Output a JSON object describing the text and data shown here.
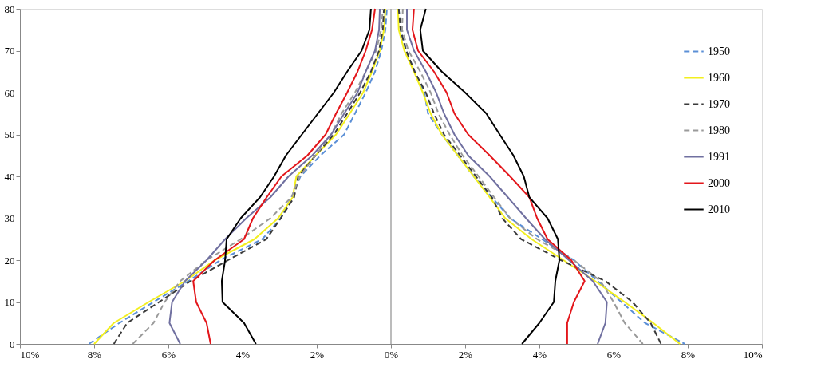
{
  "chart_data": {
    "type": "line",
    "xlim": [
      -10,
      10
    ],
    "xticks": [
      {
        "value": -10,
        "label": "10%"
      },
      {
        "value": -8,
        "label": "8%"
      },
      {
        "value": -6,
        "label": "6%"
      },
      {
        "value": -4,
        "label": "4%"
      },
      {
        "value": -2,
        "label": "2%"
      },
      {
        "value": 0,
        "label": "0%"
      },
      {
        "value": 2,
        "label": "2%"
      },
      {
        "value": 4,
        "label": "4%"
      },
      {
        "value": 6,
        "label": "6%"
      },
      {
        "value": 8,
        "label": "8%"
      },
      {
        "value": 10,
        "label": "10%"
      }
    ],
    "ylim": [
      0,
      80
    ],
    "yticks": [
      0,
      10,
      20,
      30,
      40,
      50,
      60,
      70,
      80
    ],
    "grid": false,
    "legend": "top right",
    "ref_lines": [
      {
        "axis": "x",
        "value": 0,
        "color": "#a6a6a6"
      }
    ],
    "series": [
      {
        "name": "1950",
        "color": "#5b8fd6",
        "line_style": "dashed",
        "x": [
          -8.14,
          -7.32,
          -6.4,
          -5.46,
          -4.6,
          -3.47,
          -2.97,
          -2.68,
          -2.44,
          -1.9,
          -1.26,
          -0.97,
          -0.68,
          -0.43,
          -0.26,
          -0.15,
          -0.11,
          null,
          0.21,
          0.26,
          0.41,
          0.64,
          0.9,
          1.0,
          1.37,
          1.8,
          2.23,
          2.72,
          3.21,
          4.07,
          4.93,
          5.57,
          6.21,
          6.85,
          7.92
        ],
        "values": [
          0,
          5,
          10,
          15,
          20,
          25,
          30,
          35,
          40,
          45,
          50,
          55,
          60,
          65,
          70,
          75,
          80,
          null,
          80,
          75,
          70,
          65,
          60,
          55,
          50,
          45,
          40,
          35,
          30,
          25,
          20,
          15,
          10,
          5,
          0
        ]
      },
      {
        "name": "1960",
        "color": "#f2ef1f",
        "line_style": "solid",
        "x": [
          -8.0,
          -7.47,
          -6.53,
          -5.55,
          -4.75,
          -3.68,
          -3.04,
          -2.65,
          -2.55,
          -2.03,
          -1.48,
          -1.11,
          -0.75,
          -0.51,
          -0.3,
          -0.19,
          -0.15,
          null,
          0.19,
          0.21,
          0.36,
          0.62,
          0.86,
          1.07,
          1.37,
          1.8,
          2.23,
          2.66,
          3.08,
          3.79,
          4.65,
          5.5,
          6.3,
          7.07,
          7.79
        ],
        "values": [
          0,
          5,
          10,
          15,
          20,
          25,
          30,
          35,
          40,
          45,
          50,
          55,
          60,
          65,
          70,
          75,
          80,
          null,
          80,
          75,
          70,
          65,
          60,
          55,
          50,
          45,
          40,
          35,
          30,
          25,
          20,
          15,
          10,
          5,
          0
        ]
      },
      {
        "name": "1970",
        "color": "#3a3a3a",
        "line_style": "dashed",
        "x": [
          -7.47,
          -7.11,
          -6.25,
          -5.4,
          -4.39,
          -3.36,
          -2.97,
          -2.61,
          -2.5,
          -2.03,
          -1.54,
          -1.18,
          -0.83,
          -0.54,
          -0.32,
          -0.22,
          -0.19,
          null,
          0.21,
          0.26,
          0.41,
          0.64,
          0.94,
          1.16,
          1.43,
          1.86,
          2.29,
          2.72,
          3.0,
          3.51,
          4.58,
          5.78,
          6.51,
          7.0,
          7.28
        ],
        "values": [
          0,
          5,
          10,
          15,
          20,
          25,
          30,
          35,
          40,
          45,
          50,
          55,
          60,
          65,
          70,
          75,
          80,
          null,
          80,
          75,
          70,
          65,
          60,
          55,
          50,
          45,
          40,
          35,
          30,
          25,
          20,
          15,
          10,
          5,
          0
        ]
      },
      {
        "name": "1980",
        "color": "#9a9a9a",
        "line_style": "dashed",
        "x": [
          -6.96,
          -6.4,
          -6.1,
          -5.68,
          -4.97,
          -4.05,
          -3.25,
          -2.68,
          -2.46,
          -2.03,
          -1.61,
          -1.33,
          -0.97,
          -0.68,
          -0.4,
          -0.26,
          -0.22,
          null,
          0.32,
          0.3,
          0.47,
          0.79,
          1.07,
          1.28,
          1.58,
          1.93,
          2.36,
          2.78,
          3.21,
          3.94,
          4.93,
          5.65,
          6.0,
          6.3,
          6.79
        ],
        "values": [
          0,
          5,
          10,
          15,
          20,
          25,
          30,
          35,
          40,
          45,
          50,
          55,
          60,
          65,
          70,
          75,
          80,
          null,
          80,
          75,
          70,
          65,
          60,
          55,
          50,
          45,
          40,
          35,
          30,
          25,
          20,
          15,
          10,
          5,
          0
        ]
      },
      {
        "name": "1991",
        "color": "#7070a0",
        "line_style": "solid",
        "x": [
          -5.68,
          -5.97,
          -5.9,
          -5.55,
          -4.97,
          -4.47,
          -3.9,
          -3.25,
          -2.76,
          -2.12,
          -1.61,
          -1.26,
          -0.9,
          -0.68,
          -0.43,
          -0.32,
          -0.3,
          null,
          0.43,
          0.43,
          0.62,
          0.94,
          1.22,
          1.43,
          1.71,
          2.08,
          2.66,
          3.15,
          3.64,
          4.15,
          4.8,
          5.44,
          5.82,
          5.78,
          5.57
        ],
        "values": [
          0,
          5,
          10,
          15,
          20,
          25,
          30,
          35,
          40,
          45,
          50,
          55,
          60,
          65,
          70,
          75,
          80,
          null,
          80,
          75,
          70,
          65,
          60,
          55,
          50,
          45,
          40,
          35,
          30,
          25,
          20,
          15,
          10,
          5,
          0
        ]
      },
      {
        "name": "2000",
        "color": "#e3161b",
        "line_style": "solid",
        "x": [
          -4.86,
          -4.97,
          -5.25,
          -5.33,
          -4.75,
          -3.96,
          -3.72,
          -3.35,
          -2.95,
          -2.25,
          -1.76,
          -1.48,
          -1.18,
          -0.9,
          -0.68,
          -0.51,
          -0.43,
          null,
          0.62,
          0.58,
          0.73,
          1.16,
          1.5,
          1.71,
          2.08,
          2.66,
          3.21,
          3.73,
          3.94,
          4.22,
          4.86,
          5.22,
          4.93,
          4.75,
          4.75
        ],
        "values": [
          0,
          5,
          10,
          15,
          20,
          25,
          30,
          35,
          40,
          45,
          50,
          55,
          60,
          65,
          70,
          75,
          80,
          null,
          80,
          75,
          70,
          65,
          60,
          55,
          50,
          45,
          40,
          35,
          30,
          25,
          20,
          15,
          10,
          5,
          0
        ]
      },
      {
        "name": "2010",
        "color": "#000000",
        "line_style": "solid",
        "x": [
          -3.64,
          -3.96,
          -4.54,
          -4.56,
          -4.47,
          -4.43,
          -4.05,
          -3.53,
          -3.15,
          -2.83,
          -2.4,
          -1.97,
          -1.54,
          -1.18,
          -0.79,
          -0.58,
          -0.54,
          null,
          0.94,
          0.79,
          0.86,
          1.37,
          2.0,
          2.57,
          2.93,
          3.3,
          3.58,
          3.73,
          4.22,
          4.5,
          4.54,
          4.43,
          4.39,
          4.0,
          3.53
        ],
        "values": [
          0,
          5,
          10,
          15,
          20,
          25,
          30,
          35,
          40,
          45,
          50,
          55,
          60,
          65,
          70,
          75,
          80,
          null,
          80,
          75,
          70,
          65,
          60,
          55,
          50,
          45,
          40,
          35,
          30,
          25,
          20,
          15,
          10,
          5,
          0
        ]
      }
    ]
  }
}
